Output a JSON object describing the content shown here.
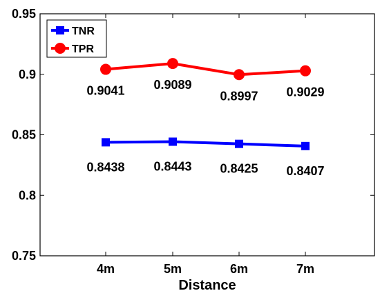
{
  "chart_data": {
    "type": "line",
    "title": "",
    "xlabel": "Distance",
    "ylabel": "",
    "categories": [
      "4m",
      "5m",
      "6m",
      "7m"
    ],
    "ylim": [
      0.75,
      0.95
    ],
    "yticks": [
      "0.75",
      "0.8",
      "0.85",
      "0.9",
      "0.95"
    ],
    "grid": false,
    "legend_position": "top-left",
    "series": [
      {
        "name": "TNR",
        "color": "#0000ff",
        "marker": "square",
        "values": [
          0.8438,
          0.8443,
          0.8425,
          0.8407
        ],
        "labels": [
          "0.8438",
          "0.8443",
          "0.8425",
          "0.8407"
        ]
      },
      {
        "name": "TPR",
        "color": "#ff0000",
        "marker": "circle",
        "values": [
          0.9041,
          0.9089,
          0.8997,
          0.9029
        ],
        "labels": [
          "0.9041",
          "0.9089",
          "0.8997",
          "0.9029"
        ]
      }
    ]
  }
}
